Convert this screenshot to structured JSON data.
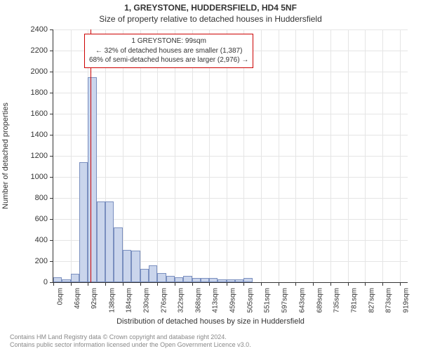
{
  "title1": "1, GREYSTONE, HUDDERSFIELD, HD4 5NF",
  "title2": "Size of property relative to detached houses in Huddersfield",
  "ylabel": "Number of detached properties",
  "xlabel": "Distribution of detached houses by size in Huddersfield",
  "footer_line1": "Contains HM Land Registry data © Crown copyright and database right 2024.",
  "footer_line2": "Contains public sector information licensed under the Open Government Licence v3.0.",
  "annotation": {
    "line1": "1 GREYSTONE: 99sqm",
    "line2": "← 32% of detached houses are smaller (1,387)",
    "line3": "68% of semi-detached houses are larger (2,976) →"
  },
  "chart": {
    "type": "bar",
    "ylim": [
      0,
      2400
    ],
    "ytick_step": 200,
    "bar_fill": "#cad5ec",
    "bar_stroke": "#7a8fbf",
    "grid_color": "#e5e5e5",
    "marker_color": "#cc0000",
    "marker_x_sqm": 99,
    "label_fontsize": 11,
    "tick_fontsize": 10,
    "title_fontsize": 12,
    "x_ticks": [
      "0sqm",
      "46sqm",
      "92sqm",
      "138sqm",
      "184sqm",
      "230sqm",
      "276sqm",
      "322sqm",
      "368sqm",
      "413sqm",
      "459sqm",
      "505sqm",
      "551sqm",
      "597sqm",
      "643sqm",
      "689sqm",
      "735sqm",
      "781sqm",
      "827sqm",
      "873sqm",
      "919sqm"
    ],
    "x_tick_positions": [
      0,
      46,
      92,
      138,
      184,
      230,
      276,
      322,
      368,
      413,
      459,
      505,
      551,
      597,
      643,
      689,
      735,
      781,
      827,
      873,
      919
    ],
    "x_max": 940,
    "bin_width_sqm": 23,
    "bins": [
      {
        "start": 0,
        "count": 50
      },
      {
        "start": 23,
        "count": 30
      },
      {
        "start": 46,
        "count": 80
      },
      {
        "start": 69,
        "count": 1140
      },
      {
        "start": 92,
        "count": 1950
      },
      {
        "start": 115,
        "count": 770
      },
      {
        "start": 138,
        "count": 770
      },
      {
        "start": 161,
        "count": 520
      },
      {
        "start": 184,
        "count": 310
      },
      {
        "start": 207,
        "count": 300
      },
      {
        "start": 230,
        "count": 130
      },
      {
        "start": 253,
        "count": 160
      },
      {
        "start": 276,
        "count": 90
      },
      {
        "start": 299,
        "count": 60
      },
      {
        "start": 322,
        "count": 50
      },
      {
        "start": 345,
        "count": 60
      },
      {
        "start": 368,
        "count": 40
      },
      {
        "start": 391,
        "count": 40
      },
      {
        "start": 413,
        "count": 40
      },
      {
        "start": 436,
        "count": 30
      },
      {
        "start": 459,
        "count": 30
      },
      {
        "start": 482,
        "count": 30
      },
      {
        "start": 505,
        "count": 40
      }
    ]
  }
}
